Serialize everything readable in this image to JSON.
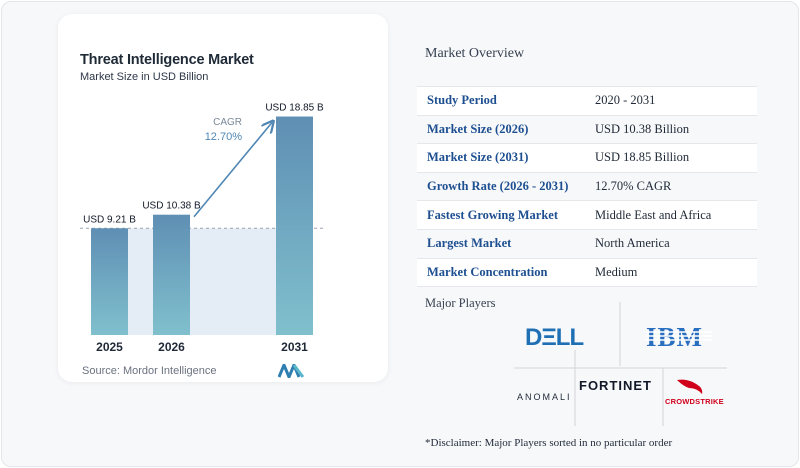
{
  "chart_data": {
    "type": "bar",
    "title": "Threat Intelligence Market",
    "subtitle": "Market Size in USD Billion",
    "categories": [
      "2025",
      "2026",
      "2031"
    ],
    "values": [
      9.21,
      10.38,
      18.85
    ],
    "data_labels": [
      "USD 9.21 B",
      "USD 10.38 B",
      "USD 18.85 B"
    ],
    "annotation": {
      "label": "CAGR",
      "value": "12.70%"
    },
    "bar_color_top": "#5f8fb4",
    "bar_color_bottom": "#7fbccb",
    "baseline_value": 9.21,
    "ylim": [
      0,
      19.5
    ],
    "grid": false,
    "source": "Source: Mordor Intelligence"
  },
  "overview": {
    "title": "Market Overview",
    "rows": [
      {
        "key": "Study Period",
        "value": "2020 - 2031"
      },
      {
        "key": "Market Size (2026)",
        "value": "USD 10.38 Billion"
      },
      {
        "key": "Market Size (2031)",
        "value": "USD 18.85 Billion"
      },
      {
        "key": "Growth Rate (2026 - 2031)",
        "value": "12.70% CAGR"
      },
      {
        "key": "Fastest Growing Market",
        "value": "Middle East and Africa"
      },
      {
        "key": "Largest Market",
        "value": "North America"
      },
      {
        "key": "Market Concentration",
        "value": "Medium"
      }
    ]
  },
  "players": {
    "title": "Major Players",
    "logos": [
      "DELL",
      "IBM",
      "ANOMALI",
      "FORTINET",
      "CROWDSTRIKE"
    ],
    "disclaimer": "*Disclaimer: Major Players sorted in no particular order"
  },
  "colors": {
    "accent": "#1d4f91",
    "arrow": "#4f86b4"
  }
}
